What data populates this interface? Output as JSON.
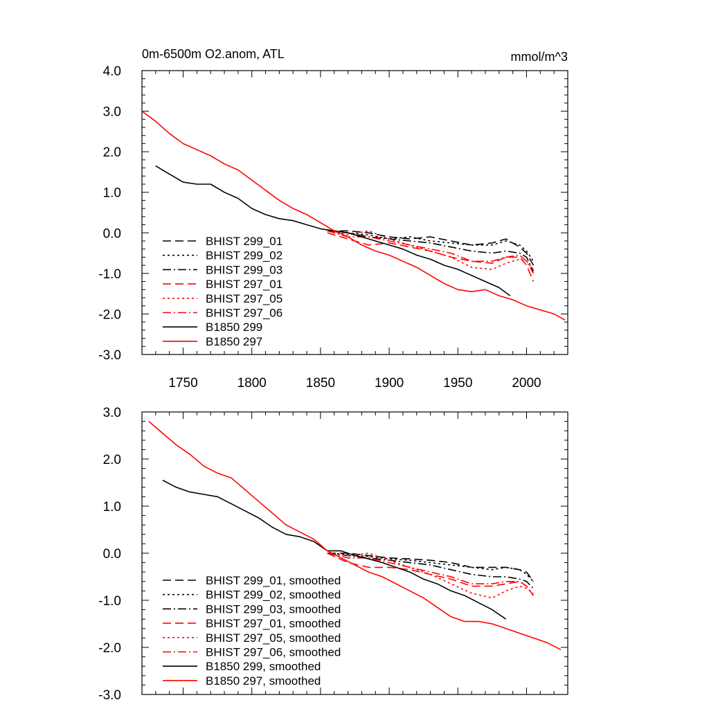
{
  "colors": {
    "black": "#000000",
    "red": "#ff0000"
  },
  "chart_data": [
    {
      "type": "line",
      "title": "0m-6500m O2.anom, ATL",
      "units": "mmol/m^3",
      "xlim": [
        1720,
        2030
      ],
      "ylim": [
        -3.0,
        4.0
      ],
      "yticks": [
        "4.0",
        "3.0",
        "2.0",
        "1.0",
        "0.0",
        "-1.0",
        "-2.0",
        "-3.0"
      ],
      "xticks": [
        "1750",
        "1800",
        "1850",
        "1900",
        "1950",
        "2000"
      ],
      "grid": false,
      "legend_position": "lower-left",
      "series": [
        {
          "name": "BHIST 299_01",
          "color": "#000000",
          "dash": "dashed",
          "x": [
            1855,
            1870,
            1885,
            1900,
            1915,
            1930,
            1945,
            1960,
            1975,
            1985,
            1995,
            2000,
            2005
          ],
          "y": [
            0.05,
            0.05,
            0.0,
            -0.1,
            -0.15,
            -0.1,
            -0.2,
            -0.3,
            -0.25,
            -0.15,
            -0.35,
            -0.5,
            -0.8
          ]
        },
        {
          "name": "BHIST 299_02",
          "color": "#000000",
          "dash": "dotted",
          "x": [
            1855,
            1870,
            1885,
            1900,
            1915,
            1930,
            1945,
            1960,
            1975,
            1985,
            1995,
            2000,
            2005
          ],
          "y": [
            0.05,
            0.0,
            -0.05,
            -0.15,
            -0.1,
            -0.2,
            -0.25,
            -0.3,
            -0.3,
            -0.2,
            -0.3,
            -0.45,
            -0.7
          ]
        },
        {
          "name": "BHIST 299_03",
          "color": "#000000",
          "dash": "dashdot",
          "x": [
            1855,
            1870,
            1885,
            1900,
            1915,
            1930,
            1945,
            1960,
            1975,
            1985,
            1995,
            2000,
            2005
          ],
          "y": [
            0.05,
            0.0,
            -0.1,
            -0.15,
            -0.2,
            -0.25,
            -0.35,
            -0.45,
            -0.5,
            -0.45,
            -0.5,
            -0.6,
            -0.95
          ]
        },
        {
          "name": "BHIST 297_01",
          "color": "#ff0000",
          "dash": "dashed",
          "x": [
            1855,
            1870,
            1885,
            1900,
            1915,
            1930,
            1945,
            1960,
            1975,
            1985,
            1995,
            2000,
            2005
          ],
          "y": [
            0.0,
            -0.15,
            -0.3,
            -0.25,
            -0.35,
            -0.45,
            -0.6,
            -0.7,
            -0.75,
            -0.6,
            -0.6,
            -0.8,
            -1.2
          ]
        },
        {
          "name": "BHIST 297_05",
          "color": "#ff0000",
          "dash": "dotted",
          "x": [
            1855,
            1870,
            1885,
            1900,
            1915,
            1930,
            1945,
            1960,
            1975,
            1985,
            1995,
            2000,
            2005
          ],
          "y": [
            0.05,
            -0.05,
            0.05,
            -0.15,
            -0.3,
            -0.45,
            -0.6,
            -0.85,
            -0.9,
            -0.75,
            -0.65,
            -0.7,
            -0.9
          ]
        },
        {
          "name": "BHIST 297_06",
          "color": "#ff0000",
          "dash": "dashdot",
          "x": [
            1855,
            1870,
            1885,
            1900,
            1915,
            1930,
            1945,
            1960,
            1975,
            1985,
            1995,
            2000,
            2005
          ],
          "y": [
            0.05,
            -0.1,
            -0.1,
            -0.2,
            -0.3,
            -0.4,
            -0.5,
            -0.7,
            -0.7,
            -0.6,
            -0.55,
            -0.7,
            -1.0
          ]
        },
        {
          "name": "B1850 299",
          "color": "#000000",
          "dash": "solid",
          "x": [
            1730,
            1740,
            1750,
            1760,
            1770,
            1780,
            1790,
            1800,
            1810,
            1820,
            1830,
            1840,
            1850,
            1860,
            1870,
            1880,
            1890,
            1900,
            1910,
            1920,
            1930,
            1940,
            1950,
            1960,
            1970,
            1980,
            1988
          ],
          "y": [
            1.65,
            1.45,
            1.25,
            1.2,
            1.2,
            1.0,
            0.85,
            0.6,
            0.45,
            0.35,
            0.3,
            0.2,
            0.1,
            0.05,
            0.0,
            -0.1,
            -0.2,
            -0.3,
            -0.4,
            -0.55,
            -0.65,
            -0.8,
            -0.9,
            -1.05,
            -1.2,
            -1.35,
            -1.55
          ]
        },
        {
          "name": "B1850 297",
          "color": "#ff0000",
          "dash": "solid",
          "x": [
            1720,
            1730,
            1740,
            1750,
            1760,
            1770,
            1780,
            1790,
            1800,
            1810,
            1820,
            1830,
            1840,
            1850,
            1860,
            1870,
            1880,
            1890,
            1900,
            1910,
            1920,
            1930,
            1940,
            1950,
            1960,
            1970,
            1980,
            1990,
            2000,
            2010,
            2020,
            2028
          ],
          "y": [
            3.0,
            2.75,
            2.45,
            2.2,
            2.05,
            1.9,
            1.7,
            1.55,
            1.3,
            1.05,
            0.8,
            0.6,
            0.45,
            0.25,
            0.05,
            -0.1,
            -0.3,
            -0.45,
            -0.55,
            -0.7,
            -0.85,
            -1.05,
            -1.25,
            -1.4,
            -1.45,
            -1.4,
            -1.55,
            -1.65,
            -1.8,
            -1.9,
            -2.0,
            -2.15
          ]
        }
      ]
    },
    {
      "type": "line",
      "xlim": [
        1720,
        2030
      ],
      "ylim": [
        -3.0,
        3.0
      ],
      "yticks": [
        "3.0",
        "2.0",
        "1.0",
        "0.0",
        "-1.0",
        "-2.0",
        "-3.0"
      ],
      "grid": false,
      "legend_position": "lower-left",
      "series": [
        {
          "name": "BHIST 299_01, smoothed",
          "color": "#000000",
          "dash": "dashed",
          "x": [
            1855,
            1870,
            1885,
            1900,
            1915,
            1930,
            1945,
            1960,
            1975,
            1985,
            1995,
            2000,
            2005
          ],
          "y": [
            0.0,
            0.0,
            -0.05,
            -0.1,
            -0.12,
            -0.15,
            -0.2,
            -0.3,
            -0.3,
            -0.3,
            -0.35,
            -0.4,
            -0.6
          ]
        },
        {
          "name": "BHIST 299_02, smoothed",
          "color": "#000000",
          "dash": "dotted",
          "x": [
            1855,
            1870,
            1885,
            1900,
            1915,
            1930,
            1945,
            1960,
            1975,
            1985,
            1995,
            2000,
            2005
          ],
          "y": [
            0.0,
            -0.02,
            -0.07,
            -0.12,
            -0.15,
            -0.2,
            -0.25,
            -0.3,
            -0.35,
            -0.3,
            -0.35,
            -0.45,
            -0.6
          ]
        },
        {
          "name": "BHIST 299_03, smoothed",
          "color": "#000000",
          "dash": "dashdot",
          "x": [
            1855,
            1870,
            1885,
            1900,
            1915,
            1930,
            1945,
            1960,
            1975,
            1985,
            1995,
            2000,
            2005
          ],
          "y": [
            0.0,
            -0.05,
            -0.1,
            -0.15,
            -0.2,
            -0.25,
            -0.35,
            -0.45,
            -0.5,
            -0.5,
            -0.55,
            -0.6,
            -0.75
          ]
        },
        {
          "name": "BHIST 297_01, smoothed",
          "color": "#ff0000",
          "dash": "dashed",
          "x": [
            1855,
            1870,
            1885,
            1900,
            1915,
            1930,
            1945,
            1960,
            1975,
            1985,
            1995,
            2000,
            2005
          ],
          "y": [
            0.0,
            -0.2,
            -0.3,
            -0.3,
            -0.35,
            -0.45,
            -0.55,
            -0.7,
            -0.7,
            -0.65,
            -0.6,
            -0.7,
            -0.9
          ]
        },
        {
          "name": "BHIST 297_05, smoothed",
          "color": "#ff0000",
          "dash": "dotted",
          "x": [
            1855,
            1870,
            1885,
            1900,
            1915,
            1930,
            1945,
            1960,
            1975,
            1985,
            1995,
            2000,
            2005
          ],
          "y": [
            0.0,
            -0.05,
            0.0,
            -0.15,
            -0.3,
            -0.45,
            -0.65,
            -0.85,
            -0.95,
            -0.8,
            -0.7,
            -0.75,
            -0.85
          ]
        },
        {
          "name": "BHIST 297_06, smoothed",
          "color": "#ff0000",
          "dash": "dashdot",
          "x": [
            1855,
            1870,
            1885,
            1900,
            1915,
            1930,
            1945,
            1960,
            1975,
            1985,
            1995,
            2000,
            2005
          ],
          "y": [
            0.0,
            -0.1,
            -0.1,
            -0.2,
            -0.3,
            -0.4,
            -0.5,
            -0.65,
            -0.65,
            -0.6,
            -0.6,
            -0.7,
            -0.9
          ]
        },
        {
          "name": "B1850 299, smoothed",
          "color": "#000000",
          "dash": "solid",
          "x": [
            1735,
            1745,
            1755,
            1765,
            1775,
            1785,
            1795,
            1805,
            1815,
            1825,
            1835,
            1845,
            1855,
            1865,
            1875,
            1885,
            1895,
            1905,
            1915,
            1925,
            1935,
            1945,
            1955,
            1965,
            1975,
            1985
          ],
          "y": [
            1.55,
            1.4,
            1.3,
            1.25,
            1.2,
            1.05,
            0.9,
            0.75,
            0.55,
            0.4,
            0.35,
            0.25,
            0.05,
            0.05,
            -0.05,
            -0.12,
            -0.2,
            -0.3,
            -0.4,
            -0.55,
            -0.65,
            -0.8,
            -0.9,
            -1.05,
            -1.2,
            -1.4
          ]
        },
        {
          "name": "B1850 297, smoothed",
          "color": "#ff0000",
          "dash": "solid",
          "x": [
            1725,
            1735,
            1745,
            1755,
            1765,
            1775,
            1785,
            1795,
            1805,
            1815,
            1825,
            1835,
            1845,
            1855,
            1865,
            1875,
            1885,
            1895,
            1905,
            1915,
            1925,
            1935,
            1945,
            1955,
            1965,
            1975,
            1985,
            1995,
            2005,
            2015,
            2025
          ],
          "y": [
            2.8,
            2.55,
            2.3,
            2.1,
            1.85,
            1.7,
            1.6,
            1.35,
            1.1,
            0.85,
            0.6,
            0.45,
            0.3,
            0.05,
            -0.1,
            -0.25,
            -0.4,
            -0.5,
            -0.65,
            -0.8,
            -0.95,
            -1.15,
            -1.35,
            -1.45,
            -1.45,
            -1.5,
            -1.6,
            -1.7,
            -1.8,
            -1.9,
            -2.05
          ]
        }
      ]
    }
  ]
}
